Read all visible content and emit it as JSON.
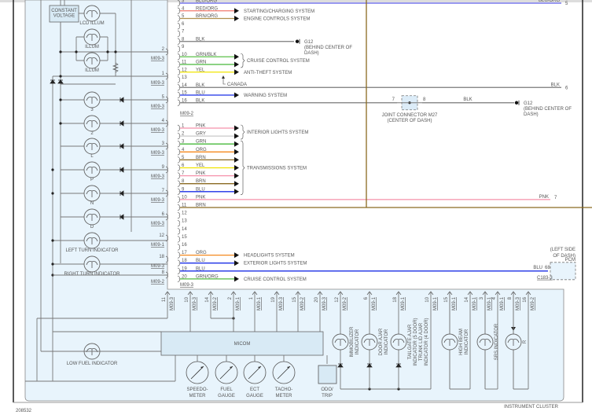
{
  "diagram_id": "208532",
  "cluster_label": "INSTRUMENT CLUSTER",
  "wire_colors": {
    "BLU/ORG": "#5a5ae6",
    "RED/ORG": "#f27a6e",
    "BRN/ORG": "#b0904e",
    "BLK": "#7a7a7a",
    "GRN/BLK": "#5cc04a",
    "GRN": "#47b83a",
    "YEL": "#f0e400",
    "BLU": "#1b2fe6",
    "PNK": "#f591aa",
    "GRY": "#c9c9c9",
    "ORG": "#f5891e",
    "BRN": "#8a6a20",
    "GRN/ORG": "#52b840"
  },
  "constant_voltage": "CONSTANT VOLTAGE",
  "bulbs": [
    {
      "label": "LCD ILLUM"
    },
    {
      "label": "ILLUM"
    },
    {
      "label": "ILLUM"
    },
    {
      "label": "3"
    },
    {
      "label": "2"
    },
    {
      "label": "L"
    },
    {
      "label": "P"
    },
    {
      "label": "N"
    },
    {
      "label": "D"
    },
    {
      "label": "LEFT TURN INDICATOR"
    },
    {
      "label": "RIGHT TURN INDICATOR"
    },
    {
      "label": "LOW FUEL INDICATOR"
    }
  ],
  "left_pins": [
    {
      "pin": "2",
      "conn": "M09-3"
    },
    {
      "pin": "1",
      "conn": "M09-3"
    },
    {
      "pin": "5",
      "conn": "M09-3"
    },
    {
      "pin": "4",
      "conn": "M09-3"
    },
    {
      "pin": "3",
      "conn": "M09-3"
    },
    {
      "pin": "9",
      "conn": "M09-3"
    },
    {
      "pin": "7",
      "conn": "M09-3"
    },
    {
      "pin": "6",
      "conn": "M09-3"
    },
    {
      "pin": "12",
      "conn": "M09-1"
    },
    {
      "pin": "18",
      "conn": "M09-3"
    },
    {
      "pin": "8",
      "conn": "M09-2"
    }
  ],
  "connector_a": {
    "label": "M09-2",
    "rows": [
      {
        "pin": "3",
        "color": "BLU/ORG",
        "to": "right",
        "right_pin": "5",
        "right_label": "BLU/ORG"
      },
      {
        "pin": "4",
        "color": "RED/ORG",
        "system": "STARTING/CHARGING SYSTEM"
      },
      {
        "pin": "5",
        "color": "BRN/ORG",
        "system": "ENGINE CONTROLS SYSTEM"
      },
      {
        "pin": "6"
      },
      {
        "pin": "7"
      },
      {
        "pin": "8",
        "color": "BLK",
        "to": "g12a"
      },
      {
        "pin": "9"
      },
      {
        "pin": "10",
        "color": "GRN/BLK",
        "arrow": true
      },
      {
        "pin": "11",
        "color": "GRN",
        "arrow": true
      },
      {
        "pin": "12",
        "color": "YEL",
        "system": "ANTI-THEFT SYSTEM"
      },
      {
        "pin": "13"
      },
      {
        "pin": "14",
        "color": "BLK",
        "to": "right",
        "right_pin": "6",
        "right_label": "BLK"
      },
      {
        "pin": "15",
        "color": "BLU",
        "system": "WARNING SYSTEM"
      },
      {
        "pin": "16",
        "color": "BLK",
        "to": "joint"
      }
    ],
    "braces": [
      {
        "rows": [
          "10",
          "11"
        ],
        "label": "CRUISE CONTROL SYSTEM"
      }
    ],
    "note": "CANADA"
  },
  "connector_b": {
    "label": "M09-3",
    "rows": [
      {
        "pin": "1",
        "color": "PNK",
        "arrow": true
      },
      {
        "pin": "2",
        "color": "GRY",
        "arrow": true
      },
      {
        "pin": "3",
        "color": "GRN",
        "arrow": true
      },
      {
        "pin": "4",
        "color": "ORG",
        "arrow": true
      },
      {
        "pin": "5",
        "color": "BRN",
        "arrow": true
      },
      {
        "pin": "6",
        "color": "YEL",
        "arrow": true
      },
      {
        "pin": "7",
        "color": "PNK",
        "arrow": true
      },
      {
        "pin": "8",
        "color": "BRN",
        "arrow": true
      },
      {
        "pin": "9",
        "color": "BLU",
        "arrow": true
      },
      {
        "pin": "10",
        "color": "PNK",
        "to": "right",
        "right_pin": "7",
        "right_label": "PNK"
      },
      {
        "pin": "11",
        "color": "BRN",
        "to": "vertical"
      },
      {
        "pin": "12"
      },
      {
        "pin": "13"
      },
      {
        "pin": "14"
      },
      {
        "pin": "15"
      },
      {
        "pin": "16"
      },
      {
        "pin": "17",
        "color": "ORG",
        "system": "HEADLIGHTS SYSTEM"
      },
      {
        "pin": "18",
        "color": "BLU",
        "system": "EXTERIOR LIGHTS SYSTEM"
      },
      {
        "pin": "19",
        "color": "BLU",
        "to": "pcm"
      },
      {
        "pin": "20",
        "color": "GRN/ORG",
        "system": "CRUISE CONTROL SYSTEM"
      }
    ],
    "braces": [
      {
        "rows": [
          "1",
          "2"
        ],
        "label": "INTERIOR LIGHTS SYSTEM"
      },
      {
        "rows": [
          "3",
          "9"
        ],
        "label": "TRANSMISSIONS SYSTEM"
      }
    ]
  },
  "ground_a": {
    "name": "G12",
    "location": "(BEHIND CENTER OF DASH)"
  },
  "ground_b": {
    "name": "G12",
    "location": "(BEHIND CENTER OF DASH)",
    "wire": "BLK"
  },
  "joint": {
    "name": "JOINT CONNECTOR M27",
    "location": "(CENTER OF DASH)",
    "pin_in": "7",
    "pin_out": "8"
  },
  "pcm": {
    "location": "(LEFT SIDE OF DASH)",
    "name": "PCM",
    "pin": "68",
    "conn": "C183-3",
    "wire": "BLU"
  },
  "bottom_pins": [
    {
      "pin": "11",
      "conn": "M09-3"
    },
    {
      "pin": "10",
      "conn": "M09-3"
    },
    {
      "pin": "14",
      "conn": "M09-2"
    },
    {
      "pin": "2",
      "conn": "M09-1"
    },
    {
      "pin": "1",
      "conn": "M09-1"
    },
    {
      "pin": "19",
      "conn": "M09-3"
    },
    {
      "pin": "15",
      "conn": "M09-2"
    },
    {
      "pin": "20",
      "conn": "M09-3"
    },
    {
      "pin": "12",
      "conn": "M09-2"
    },
    {
      "pin": "6",
      "conn": "M09-1"
    },
    {
      "pin": "18",
      "conn": "M09-1"
    },
    {
      "pin": "10",
      "conn": "M09-1"
    },
    {
      "pin": "15",
      "conn": "M09-1"
    },
    {
      "pin": "14",
      "conn": "M09-1"
    },
    {
      "pin": "3",
      "conn": "M09-1"
    },
    {
      "pin": "4",
      "conn": "M09-1"
    },
    {
      "pin": "8",
      "conn": "M09-3"
    },
    {
      "pin": "16",
      "conn": "M09-2"
    }
  ],
  "micom": "MICOM",
  "gauges": [
    {
      "label": [
        "SPEEDO-",
        "METER"
      ]
    },
    {
      "label": [
        "FUEL",
        "GAUGE"
      ]
    },
    {
      "label": [
        "ECT",
        "GAUGE"
      ]
    },
    {
      "label": [
        "TACHO-",
        "METER"
      ]
    }
  ],
  "odo": [
    "ODO/",
    "TRIP"
  ],
  "indicators": [
    {
      "label": [
        "IMMOBILIZER",
        "INDICATOR"
      ]
    },
    {
      "label": [
        "DOOR AJAR",
        "INDICATOR"
      ]
    },
    {
      "label": [
        "TAILGATE AJAR",
        "INDICATOR   (5 DOOR)",
        "TRUNK LID AJAR",
        "INDICATOR   (4 DOOR)"
      ]
    },
    {
      "label": [
        "HIGH BEAM",
        "INDICATOR"
      ]
    },
    {
      "label": [
        "SRS INDICATOR"
      ]
    },
    {
      "label": [
        "R"
      ]
    }
  ]
}
